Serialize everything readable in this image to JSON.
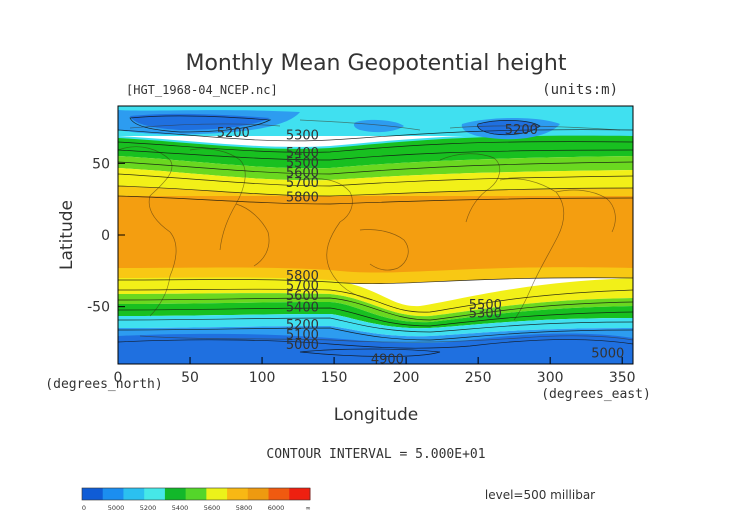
{
  "chart_data": {
    "type": "heatmap",
    "title": "Monthly Mean Geopotential height",
    "file_label": "[HGT_1968-04_NCEP.nc]",
    "units_label": "(units:m)",
    "xlabel": "Longitude",
    "ylabel": "Latitude",
    "x_unit_label": "(degrees_east)",
    "y_unit_label": "(degrees_north)",
    "xlim": [
      0,
      357.5
    ],
    "ylim": [
      -90,
      90
    ],
    "x_ticks": [
      0,
      50,
      100,
      150,
      200,
      250,
      300,
      350
    ],
    "y_ticks": [
      50,
      0,
      -50
    ],
    "contour_interval_text": "CONTOUR INTERVAL = 5.000E+01",
    "level_text": "level=500 millibar",
    "contour_labels": [
      {
        "text": "5200",
        "lon": 80,
        "lat": 72
      },
      {
        "text": "5300",
        "lon": 128,
        "lat": 70
      },
      {
        "text": "5400",
        "lon": 128,
        "lat": 58
      },
      {
        "text": "5500",
        "lon": 128,
        "lat": 51
      },
      {
        "text": "5600",
        "lon": 128,
        "lat": 44
      },
      {
        "text": "5700",
        "lon": 128,
        "lat": 37
      },
      {
        "text": "5800",
        "lon": 128,
        "lat": 27
      },
      {
        "text": "5200",
        "lon": 280,
        "lat": 74
      },
      {
        "text": "5800",
        "lon": 128,
        "lat": -28
      },
      {
        "text": "5700",
        "lon": 128,
        "lat": -35
      },
      {
        "text": "5600",
        "lon": 128,
        "lat": -42
      },
      {
        "text": "5400",
        "lon": 128,
        "lat": -50
      },
      {
        "text": "5200",
        "lon": 128,
        "lat": -62
      },
      {
        "text": "5100",
        "lon": 128,
        "lat": -69
      },
      {
        "text": "5000",
        "lon": 128,
        "lat": -76
      },
      {
        "text": "4900",
        "lon": 187,
        "lat": -86
      },
      {
        "text": "5500",
        "lon": 255,
        "lat": -48
      },
      {
        "text": "5300",
        "lon": 255,
        "lat": -54
      },
      {
        "text": "5000",
        "lon": 340,
        "lat": -82
      }
    ],
    "colorbar": {
      "ticks": [
        "0",
        "5000",
        "5200",
        "5400",
        "5600",
        "5800",
        "6000",
        "∞"
      ],
      "colors": [
        "#0f5cd6",
        "#1b8ef0",
        "#2bc0f0",
        "#46e8e8",
        "#12b82a",
        "#54d62a",
        "#ecf21a",
        "#f8b814",
        "#ee9a10",
        "#f05a10",
        "#ee2010"
      ]
    },
    "color_bands": [
      {
        "range": "4850-5100",
        "color": "#1f70e0"
      },
      {
        "range": "5100-5300",
        "color": "#2d9cf0"
      },
      {
        "range": "5300-5450",
        "color": "#40e0f0"
      },
      {
        "range": "5450-5550",
        "color": "#18c020"
      },
      {
        "range": "5550-5650",
        "color": "#6ad820"
      },
      {
        "range": "5650-5750",
        "color": "#f2f018"
      },
      {
        "range": "5750-5800",
        "color": "#f8c814"
      },
      {
        "range": "5800-5900",
        "color": "#f49e10"
      }
    ]
  }
}
